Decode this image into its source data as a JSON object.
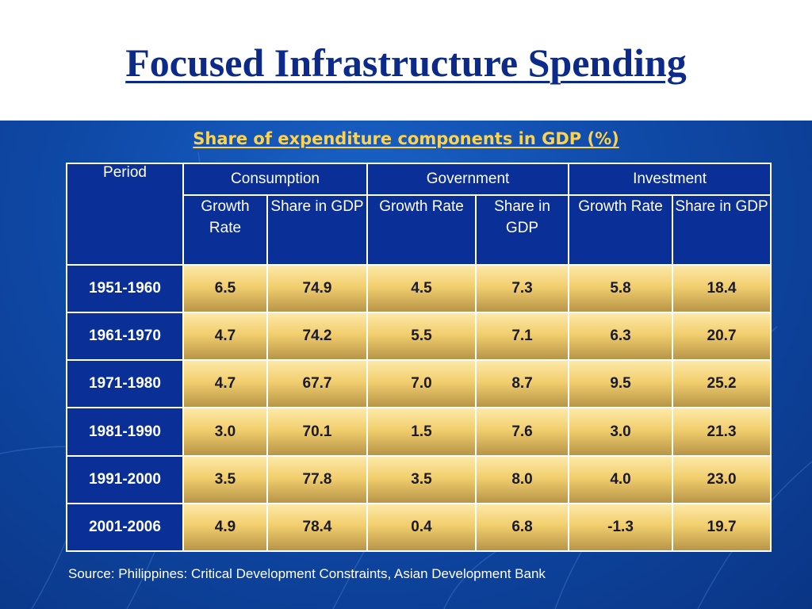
{
  "slide": {
    "title": "Focused Infrastructure Spending",
    "subtitle": "Share of expenditure components in GDP (%)",
    "source": "Source: Philippines: Critical Development Constraints, Asian Development Bank"
  },
  "table": {
    "period_header": "Period",
    "groups": [
      "Consumption",
      "Government",
      "Investment"
    ],
    "subheaders": [
      "Growth Rate",
      "Share in GDP",
      "Growth Rate",
      "Share in GDP",
      "Growth Rate",
      "Share in GDP"
    ],
    "rows": [
      {
        "period": "1951-1960",
        "values": [
          "6.5",
          "74.9",
          "4.5",
          "7.3",
          "5.8",
          "18.4"
        ]
      },
      {
        "period": "1961-1970",
        "values": [
          "4.7",
          "74.2",
          "5.5",
          "7.1",
          "6.3",
          "20.7"
        ]
      },
      {
        "period": "1971-1980",
        "values": [
          "4.7",
          "67.7",
          "7.0",
          "8.7",
          "9.5",
          "25.2"
        ]
      },
      {
        "period": "1981-1990",
        "values": [
          "3.0",
          "70.1",
          "1.5",
          "7.6",
          "3.0",
          "21.3"
        ]
      },
      {
        "period": "1991-2000",
        "values": [
          "3.5",
          "77.8",
          "3.5",
          "8.0",
          "4.0",
          "23.0"
        ]
      },
      {
        "period": "2001-2006",
        "values": [
          "4.9",
          "78.4",
          "0.4",
          "6.8",
          "-1.3",
          "19.7"
        ]
      }
    ]
  }
}
